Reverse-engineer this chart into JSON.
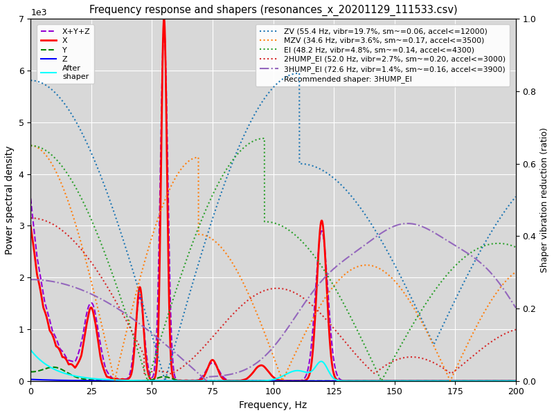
{
  "title": "Frequency response and shapers (resonances_x_20201129_111533.csv)",
  "xlabel": "Frequency, Hz",
  "ylabel_left": "Power spectral density",
  "ylabel_right": "Shaper vibration reduction (ratio)",
  "xlim": [
    0,
    200
  ],
  "ylim_left": [
    0,
    7000
  ],
  "ylim_right": [
    0,
    1.0
  ],
  "grid": true,
  "legend_left": {
    "entries": [
      "X+Y+Z",
      "X",
      "Y",
      "Z",
      "After\nshaper"
    ],
    "colors": [
      "#9400d3",
      "#ff0000",
      "#008000",
      "#0000ff",
      "#00ffff"
    ],
    "linestyles": [
      "--",
      "-",
      "--",
      "-",
      "-"
    ],
    "linewidths": [
      1.5,
      2.0,
      1.5,
      1.5,
      1.5
    ]
  },
  "legend_right": {
    "entries": [
      "ZV (55.4 Hz, vibr=19.7%, sm~=0.06, accel<=12000)",
      "MZV (34.6 Hz, vibr=3.6%, sm~=0.17, accel<=3500)",
      "EI (48.2 Hz, vibr=4.8%, sm~=0.14, accel<=4300)",
      "2HUMP_EI (52.0 Hz, vibr=2.7%, sm~=0.20, accel<=3000)",
      "3HUMP_EI (72.6 Hz, vibr=1.4%, sm~=0.16, accel<=3900)"
    ],
    "colors": [
      "#1f77b4",
      "#ff7f0e",
      "#2ca02c",
      "#d62728",
      "#9467bd"
    ],
    "linestyles": [
      ":",
      ":",
      ":",
      ":",
      "-."
    ],
    "linewidths": [
      1.5,
      1.5,
      1.5,
      1.5,
      1.5
    ]
  },
  "recommended": "Recommended shaper: 3HUMP_EI",
  "bg_color": "#ffffff",
  "ax_bg_color": "#d8d8d8"
}
